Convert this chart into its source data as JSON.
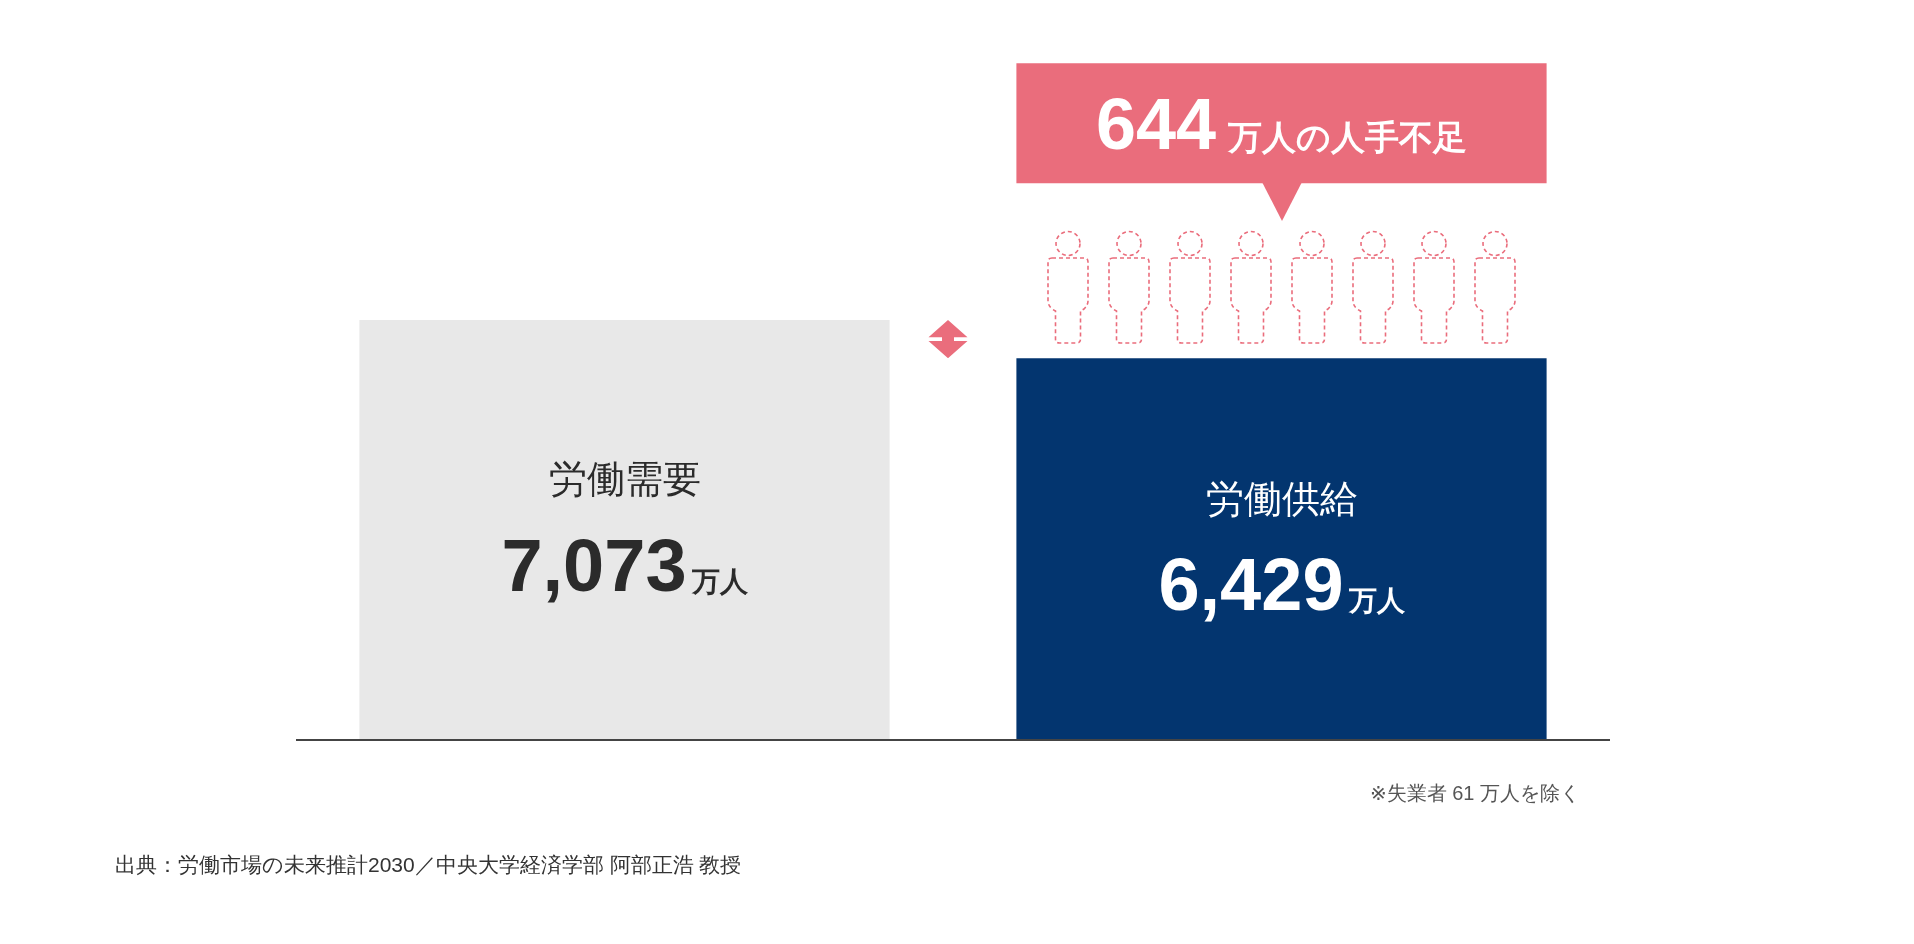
{
  "chart_data": {
    "type": "bar",
    "categories": [
      "労働需要",
      "労働供給"
    ],
    "values": [
      7073,
      6429
    ],
    "colors": [
      "#e8e8e8",
      "#03356f"
    ],
    "value_labels": [
      "7,073万人",
      "6,429万人"
    ],
    "tick_labels": false,
    "annotations": [
      "644万人の人手不足",
      "※失業者 61 万人を除く",
      "出典：労働市場の未来推計2030／中央大学経済学部 阿部正浩 教授"
    ]
  }
}
